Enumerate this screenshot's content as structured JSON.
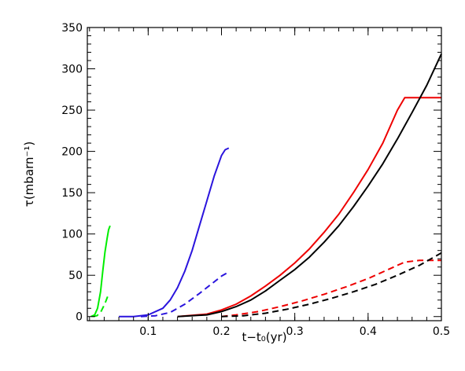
{
  "chart_data": {
    "type": "line",
    "title": "",
    "xlabel": "t−t₀(yr)",
    "ylabel": "τ(mbarn⁻¹)",
    "xlim": [
      0.017,
      0.5
    ],
    "ylim": [
      -5,
      350
    ],
    "xticks": [
      0.1,
      0.2,
      0.3,
      0.4,
      0.5
    ],
    "xtick_labels": [
      "0.1",
      "0.2",
      "0.3",
      "0.4",
      "0.5"
    ],
    "yticks": [
      0,
      50,
      100,
      150,
      200,
      250,
      300,
      350
    ],
    "ytick_labels": [
      "0",
      "50",
      "100",
      "150",
      "200",
      "250",
      "300",
      "350"
    ],
    "grid": false,
    "legend": "none",
    "series": [
      {
        "color": "#00ee00",
        "dash": "solid",
        "x": [
          0.022,
          0.027,
          0.031,
          0.035,
          0.038,
          0.041,
          0.044,
          0.046,
          0.048
        ],
        "y": [
          0,
          2,
          10,
          30,
          55,
          78,
          95,
          105,
          110
        ]
      },
      {
        "color": "#00ee00",
        "dash": "dashed",
        "x": [
          0.024,
          0.03,
          0.035,
          0.039,
          0.042,
          0.045
        ],
        "y": [
          0,
          1,
          5,
          12,
          18,
          25
        ]
      },
      {
        "color": "#2a14dd",
        "dash": "solid",
        "x": [
          0.06,
          0.08,
          0.1,
          0.12,
          0.13,
          0.14,
          0.15,
          0.16,
          0.17,
          0.18,
          0.19,
          0.2,
          0.205,
          0.21
        ],
        "y": [
          0,
          0,
          2,
          10,
          20,
          35,
          55,
          80,
          110,
          140,
          170,
          195,
          202,
          204
        ]
      },
      {
        "color": "#2a14dd",
        "dash": "dashed",
        "x": [
          0.09,
          0.11,
          0.13,
          0.15,
          0.17,
          0.19,
          0.2,
          0.21
        ],
        "y": [
          0,
          1,
          5,
          15,
          28,
          42,
          49,
          54
        ]
      },
      {
        "color": "#ee0000",
        "dash": "solid",
        "x": [
          0.14,
          0.18,
          0.2,
          0.22,
          0.24,
          0.26,
          0.28,
          0.3,
          0.32,
          0.34,
          0.36,
          0.38,
          0.4,
          0.42,
          0.44,
          0.45,
          0.5
        ],
        "y": [
          0,
          3,
          8,
          15,
          25,
          37,
          50,
          65,
          82,
          102,
          124,
          150,
          178,
          210,
          250,
          265,
          265
        ]
      },
      {
        "color": "#000000",
        "dash": "solid",
        "x": [
          0.14,
          0.18,
          0.2,
          0.22,
          0.24,
          0.26,
          0.28,
          0.3,
          0.32,
          0.34,
          0.36,
          0.38,
          0.4,
          0.42,
          0.44,
          0.46,
          0.48,
          0.5
        ],
        "y": [
          0,
          2,
          6,
          12,
          20,
          31,
          44,
          57,
          72,
          90,
          110,
          133,
          158,
          185,
          215,
          247,
          280,
          318
        ]
      },
      {
        "color": "#ee0000",
        "dash": "dashed",
        "x": [
          0.2,
          0.22,
          0.25,
          0.28,
          0.31,
          0.34,
          0.37,
          0.4,
          0.43,
          0.45,
          0.47,
          0.5
        ],
        "y": [
          0,
          2,
          6,
          12,
          19,
          27,
          36,
          46,
          58,
          66,
          68,
          68
        ]
      },
      {
        "color": "#000000",
        "dash": "dashed",
        "x": [
          0.2,
          0.23,
          0.26,
          0.29,
          0.32,
          0.35,
          0.38,
          0.41,
          0.44,
          0.47,
          0.5
        ],
        "y": [
          0,
          1,
          4,
          9,
          15,
          22,
          30,
          39,
          50,
          62,
          77
        ]
      }
    ]
  }
}
